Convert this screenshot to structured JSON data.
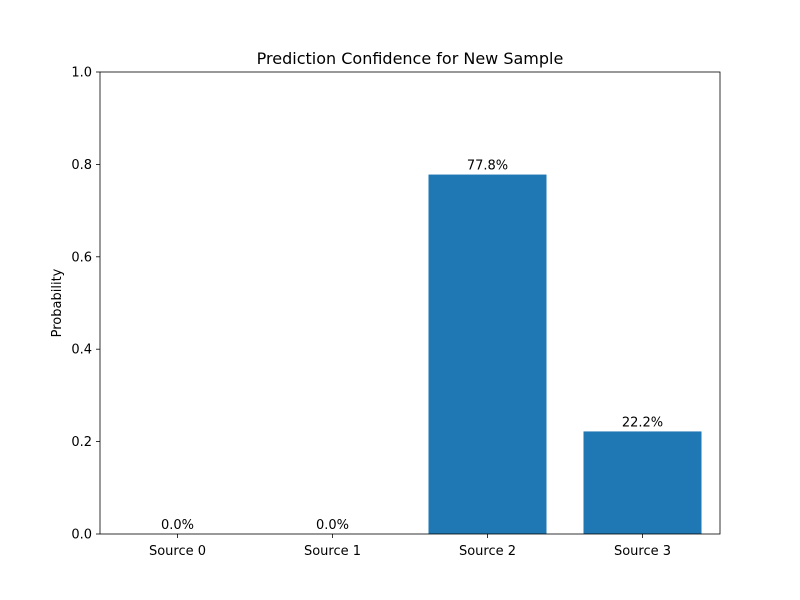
{
  "chart_data": {
    "type": "bar",
    "title": "Prediction Confidence for New Sample",
    "xlabel": "",
    "ylabel": "Probability",
    "categories": [
      "Source 0",
      "Source 1",
      "Source 2",
      "Source 3"
    ],
    "values": [
      0.0,
      0.0,
      0.778,
      0.222
    ],
    "data_labels": [
      "0.0%",
      "0.0%",
      "77.8%",
      "22.2%"
    ],
    "ylim": [
      0,
      1.0
    ],
    "yticks": [
      0.0,
      0.2,
      0.4,
      0.6,
      0.8,
      1.0
    ],
    "ytick_labels": [
      "0.0",
      "0.2",
      "0.4",
      "0.6",
      "0.8",
      "1.0"
    ],
    "bar_color": "#1f77b4",
    "grid": false,
    "legend": "none"
  }
}
